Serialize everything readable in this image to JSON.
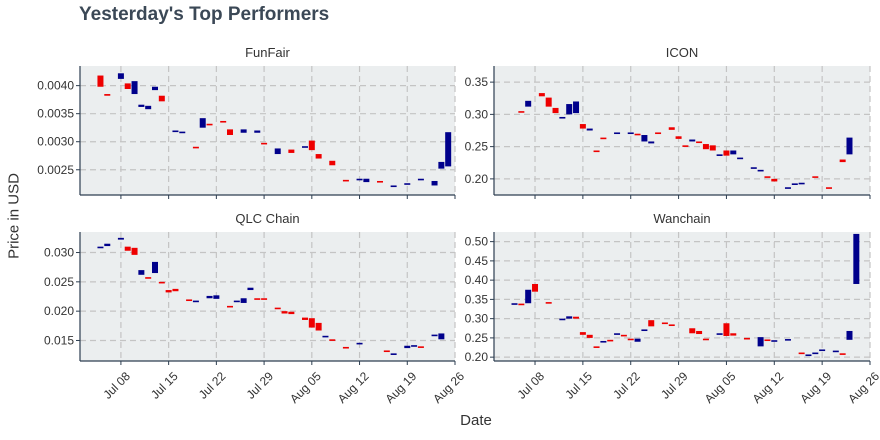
{
  "title": "Yesterday's Top Performers",
  "chart_data": {
    "type": "candlestick",
    "title": "Yesterday's Top Performers",
    "xlabel": "Date",
    "ylabel": "Price in USD",
    "colors": {
      "up": "#00008B",
      "down": "#EE0000",
      "panel_bg": "#EBEEEF",
      "grid": "#c4c4c4",
      "axis": "#2d3e50"
    },
    "grid": true,
    "x_ticks": [
      "2018-07-08",
      "2018-07-15",
      "2018-07-22",
      "2018-07-29",
      "2018-08-05",
      "2018-08-12",
      "2018-08-19",
      "2018-08-26"
    ],
    "x_tick_labels": [
      "Jul 08",
      "Jul 15",
      "Jul 22",
      "Jul 29",
      "Aug 05",
      "Aug 12",
      "Aug 19",
      "Aug 26"
    ],
    "x_range": [
      "2018-07-02",
      "2018-08-26"
    ],
    "panels": [
      {
        "name": "FunFair",
        "ylim": [
          0.00205,
          0.00435
        ],
        "y_ticks": [
          0.0025,
          0.003,
          0.0035,
          0.004
        ],
        "y_tick_labels": [
          "0.0025",
          "0.0030",
          "0.0035",
          "0.0040"
        ],
        "candles": [
          [
            "2018-07-05",
            0.00418,
            0.00398
          ],
          [
            "2018-07-06",
            0.00385,
            0.00382
          ],
          [
            "2018-07-08",
            0.00412,
            0.00422
          ],
          [
            "2018-07-09",
            0.00404,
            0.00394
          ],
          [
            "2018-07-10",
            0.00385,
            0.00408
          ],
          [
            "2018-07-11",
            0.00362,
            0.00366
          ],
          [
            "2018-07-12",
            0.00358,
            0.00364
          ],
          [
            "2018-07-13",
            0.00392,
            0.00398
          ],
          [
            "2018-07-14",
            0.00382,
            0.00372
          ],
          [
            "2018-07-16",
            0.00318,
            0.0032
          ],
          [
            "2018-07-17",
            0.00316,
            0.00318
          ],
          [
            "2018-07-19",
            0.00291,
            0.00289
          ],
          [
            "2018-07-20",
            0.00325,
            0.00342
          ],
          [
            "2018-07-21",
            0.00332,
            0.0033
          ],
          [
            "2018-07-23",
            0.00337,
            0.00336
          ],
          [
            "2018-07-24",
            0.00322,
            0.00312
          ],
          [
            "2018-07-26",
            0.00316,
            0.00322
          ],
          [
            "2018-07-28",
            0.00316,
            0.0032
          ],
          [
            "2018-07-29",
            0.00298,
            0.00296
          ],
          [
            "2018-07-31",
            0.00278,
            0.00288
          ],
          [
            "2018-08-02",
            0.00286,
            0.0028
          ],
          [
            "2018-08-04",
            0.0029,
            0.00292
          ],
          [
            "2018-08-05",
            0.00302,
            0.00285
          ],
          [
            "2018-08-06",
            0.00278,
            0.0027
          ],
          [
            "2018-08-08",
            0.00266,
            0.00258
          ],
          [
            "2018-08-10",
            0.00232,
            0.0023
          ],
          [
            "2018-08-12",
            0.00232,
            0.00234
          ],
          [
            "2018-08-13",
            0.00228,
            0.00234
          ],
          [
            "2018-08-15",
            0.0023,
            0.00228
          ],
          [
            "2018-08-17",
            0.0022,
            0.00222
          ],
          [
            "2018-08-19",
            0.00224,
            0.00226
          ],
          [
            "2018-08-21",
            0.00232,
            0.00234
          ],
          [
            "2018-08-23",
            0.00222,
            0.0023
          ],
          [
            "2018-08-24",
            0.00252,
            0.00264
          ],
          [
            "2018-08-25",
            0.00256,
            0.00317
          ]
        ]
      },
      {
        "name": "ICON",
        "ylim": [
          0.175,
          0.375
        ],
        "y_ticks": [
          0.2,
          0.25,
          0.3,
          0.35
        ],
        "y_tick_labels": [
          "0.20",
          "0.25",
          "0.30",
          "0.35"
        ],
        "candles": [
          [
            "2018-07-06",
            0.305,
            0.303
          ],
          [
            "2018-07-07",
            0.312,
            0.321
          ],
          [
            "2018-07-09",
            0.333,
            0.328
          ],
          [
            "2018-07-10",
            0.326,
            0.312
          ],
          [
            "2018-07-11",
            0.31,
            0.302
          ],
          [
            "2018-07-12",
            0.295,
            0.296
          ],
          [
            "2018-07-13",
            0.3,
            0.316
          ],
          [
            "2018-07-14",
            0.302,
            0.32
          ],
          [
            "2018-07-15",
            0.285,
            0.278
          ],
          [
            "2018-07-16",
            0.275,
            0.278
          ],
          [
            "2018-07-17",
            0.244,
            0.242
          ],
          [
            "2018-07-18",
            0.264,
            0.262
          ],
          [
            "2018-07-20",
            0.27,
            0.272
          ],
          [
            "2018-07-22",
            0.27,
            0.272
          ],
          [
            "2018-07-23",
            0.27,
            0.268
          ],
          [
            "2018-07-24",
            0.258,
            0.268
          ],
          [
            "2018-07-25",
            0.255,
            0.258
          ],
          [
            "2018-07-26",
            0.272,
            0.27
          ],
          [
            "2018-07-28",
            0.28,
            0.276
          ],
          [
            "2018-07-29",
            0.266,
            0.262
          ],
          [
            "2018-07-30",
            0.252,
            0.25
          ],
          [
            "2018-07-31",
            0.258,
            0.261
          ],
          [
            "2018-08-01",
            0.258,
            0.256
          ],
          [
            "2018-08-02",
            0.254,
            0.246
          ],
          [
            "2018-08-03",
            0.252,
            0.244
          ],
          [
            "2018-08-04",
            0.236,
            0.238
          ],
          [
            "2018-08-05",
            0.244,
            0.236
          ],
          [
            "2018-08-06",
            0.238,
            0.244
          ],
          [
            "2018-08-07",
            0.231,
            0.233
          ],
          [
            "2018-08-09",
            0.216,
            0.218
          ],
          [
            "2018-08-10",
            0.212,
            0.214
          ],
          [
            "2018-08-11",
            0.204,
            0.202
          ],
          [
            "2018-08-12",
            0.2,
            0.196
          ],
          [
            "2018-08-14",
            0.185,
            0.187
          ],
          [
            "2018-08-15",
            0.191,
            0.193
          ],
          [
            "2018-08-16",
            0.192,
            0.194
          ],
          [
            "2018-08-18",
            0.204,
            0.202
          ],
          [
            "2018-08-20",
            0.187,
            0.185
          ],
          [
            "2018-08-22",
            0.23,
            0.226
          ],
          [
            "2018-08-23",
            0.238,
            0.264
          ]
        ]
      },
      {
        "name": "QLC Chain",
        "ylim": [
          0.0115,
          0.0335
        ],
        "y_ticks": [
          0.015,
          0.02,
          0.025,
          0.03
        ],
        "y_tick_labels": [
          "0.015",
          "0.020",
          "0.025",
          "0.030"
        ],
        "candles": [
          [
            "2018-07-05",
            0.0308,
            0.031
          ],
          [
            "2018-07-06",
            0.0311,
            0.0315
          ],
          [
            "2018-07-08",
            0.0322,
            0.0325
          ],
          [
            "2018-07-09",
            0.031,
            0.0303
          ],
          [
            "2018-07-10",
            0.0308,
            0.0296
          ],
          [
            "2018-07-11",
            0.0262,
            0.027
          ],
          [
            "2018-07-12",
            0.0258,
            0.0256
          ],
          [
            "2018-07-13",
            0.0265,
            0.0284
          ],
          [
            "2018-07-14",
            0.025,
            0.0248
          ],
          [
            "2018-07-15",
            0.0236,
            0.0232
          ],
          [
            "2018-07-16",
            0.0238,
            0.0234
          ],
          [
            "2018-07-18",
            0.022,
            0.0218
          ],
          [
            "2018-07-19",
            0.0216,
            0.0218
          ],
          [
            "2018-07-21",
            0.0222,
            0.0226
          ],
          [
            "2018-07-22",
            0.0221,
            0.0227
          ],
          [
            "2018-07-24",
            0.0209,
            0.0207
          ],
          [
            "2018-07-25",
            0.0216,
            0.0218
          ],
          [
            "2018-07-26",
            0.0214,
            0.0222
          ],
          [
            "2018-07-27",
            0.0236,
            0.024
          ],
          [
            "2018-07-28",
            0.0222,
            0.022
          ],
          [
            "2018-07-29",
            0.0222,
            0.022
          ],
          [
            "2018-07-31",
            0.0206,
            0.0204
          ],
          [
            "2018-08-01",
            0.02,
            0.0196
          ],
          [
            "2018-08-02",
            0.0199,
            0.0195
          ],
          [
            "2018-08-04",
            0.0189,
            0.0185
          ],
          [
            "2018-08-05",
            0.0188,
            0.0172
          ],
          [
            "2018-08-06",
            0.018,
            0.0167
          ],
          [
            "2018-08-07",
            0.0156,
            0.0158
          ],
          [
            "2018-08-08",
            0.0152,
            0.015
          ],
          [
            "2018-08-10",
            0.0139,
            0.0137
          ],
          [
            "2018-08-12",
            0.0144,
            0.0146
          ],
          [
            "2018-08-16",
            0.0133,
            0.0131
          ],
          [
            "2018-08-17",
            0.0126,
            0.0128
          ],
          [
            "2018-08-19",
            0.0137,
            0.0141
          ],
          [
            "2018-08-20",
            0.014,
            0.0142
          ],
          [
            "2018-08-21",
            0.014,
            0.0138
          ],
          [
            "2018-08-23",
            0.0158,
            0.016
          ],
          [
            "2018-08-24",
            0.0152,
            0.0162
          ]
        ]
      },
      {
        "name": "Wanchain",
        "ylim": [
          0.19,
          0.525
        ],
        "y_ticks": [
          0.2,
          0.25,
          0.3,
          0.35,
          0.4,
          0.45,
          0.5
        ],
        "y_tick_labels": [
          "0.20",
          "0.25",
          "0.30",
          "0.35",
          "0.40",
          "0.45",
          "0.50"
        ],
        "candles": [
          [
            "2018-07-05",
            0.338,
            0.34
          ],
          [
            "2018-07-06",
            0.339,
            0.338
          ],
          [
            "2018-07-07",
            0.34,
            0.375
          ],
          [
            "2018-07-08",
            0.39,
            0.37
          ],
          [
            "2018-07-10",
            0.343,
            0.341
          ],
          [
            "2018-07-12",
            0.298,
            0.3
          ],
          [
            "2018-07-13",
            0.3,
            0.306
          ],
          [
            "2018-07-14",
            0.305,
            0.3
          ],
          [
            "2018-07-15",
            0.265,
            0.258
          ],
          [
            "2018-07-16",
            0.258,
            0.25
          ],
          [
            "2018-07-17",
            0.228,
            0.226
          ],
          [
            "2018-07-18",
            0.24,
            0.242
          ],
          [
            "2018-07-19",
            0.245,
            0.243
          ],
          [
            "2018-07-20",
            0.26,
            0.262
          ],
          [
            "2018-07-21",
            0.258,
            0.256
          ],
          [
            "2018-07-22",
            0.248,
            0.246
          ],
          [
            "2018-07-23",
            0.24,
            0.248
          ],
          [
            "2018-07-24",
            0.27,
            0.272
          ],
          [
            "2018-07-25",
            0.296,
            0.28
          ],
          [
            "2018-07-27",
            0.29,
            0.286
          ],
          [
            "2018-07-28",
            0.285,
            0.283
          ],
          [
            "2018-07-31",
            0.275,
            0.262
          ],
          [
            "2018-08-01",
            0.268,
            0.26
          ],
          [
            "2018-08-02",
            0.248,
            0.246
          ],
          [
            "2018-08-04",
            0.26,
            0.262
          ],
          [
            "2018-08-05",
            0.288,
            0.255
          ],
          [
            "2018-08-06",
            0.262,
            0.256
          ],
          [
            "2018-08-08",
            0.25,
            0.248
          ],
          [
            "2018-08-10",
            0.228,
            0.252
          ],
          [
            "2018-08-11",
            0.246,
            0.244
          ],
          [
            "2018-08-12",
            0.24,
            0.244
          ],
          [
            "2018-08-14",
            0.245,
            0.247
          ],
          [
            "2018-08-16",
            0.212,
            0.21
          ],
          [
            "2018-08-17",
            0.205,
            0.207
          ],
          [
            "2018-08-18",
            0.21,
            0.212
          ],
          [
            "2018-08-19",
            0.218,
            0.22
          ],
          [
            "2018-08-21",
            0.215,
            0.217
          ],
          [
            "2018-08-22",
            0.21,
            0.208
          ],
          [
            "2018-08-23",
            0.245,
            0.268
          ],
          [
            "2018-08-24",
            0.39,
            0.52
          ]
        ]
      }
    ]
  }
}
